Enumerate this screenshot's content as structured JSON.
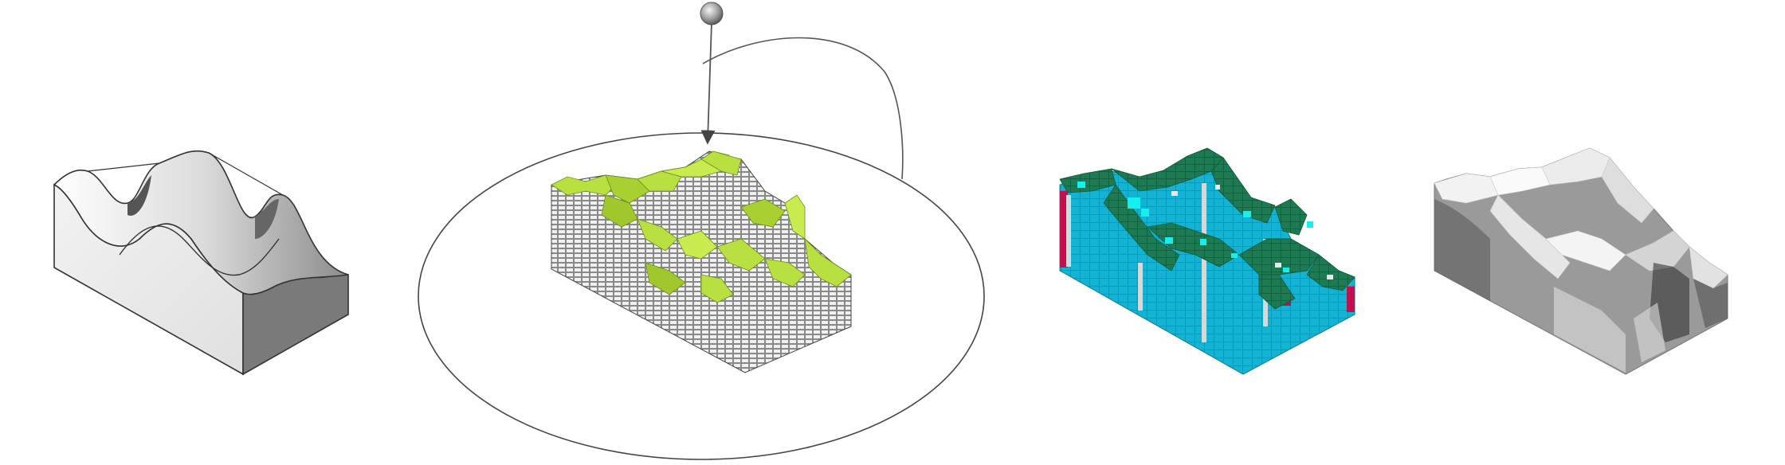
{
  "diagram": {
    "panels": [
      {
        "id": "smooth-terrain-solid",
        "shading": "grey-gradient"
      },
      {
        "id": "voxel-terrain-in-sphere",
        "top_color": "#b8e040",
        "side_color": "#8a8a8a"
      },
      {
        "id": "voxel-terrain-classified",
        "top_color": "#1e7a52",
        "side_color": "#14b3d4",
        "accent_cyan": "#14f0f0",
        "accent_red": "#c01050",
        "accent_grey": "#d8d8d8"
      },
      {
        "id": "voxel-terrain-greyscale",
        "side_color": "#9a9a9a"
      }
    ],
    "connector": {
      "marker": "sphere-icon",
      "arrowhead": "arrow-icon"
    },
    "colors": {
      "line": "#555555",
      "outline": "#444444",
      "background": "#ffffff"
    }
  }
}
